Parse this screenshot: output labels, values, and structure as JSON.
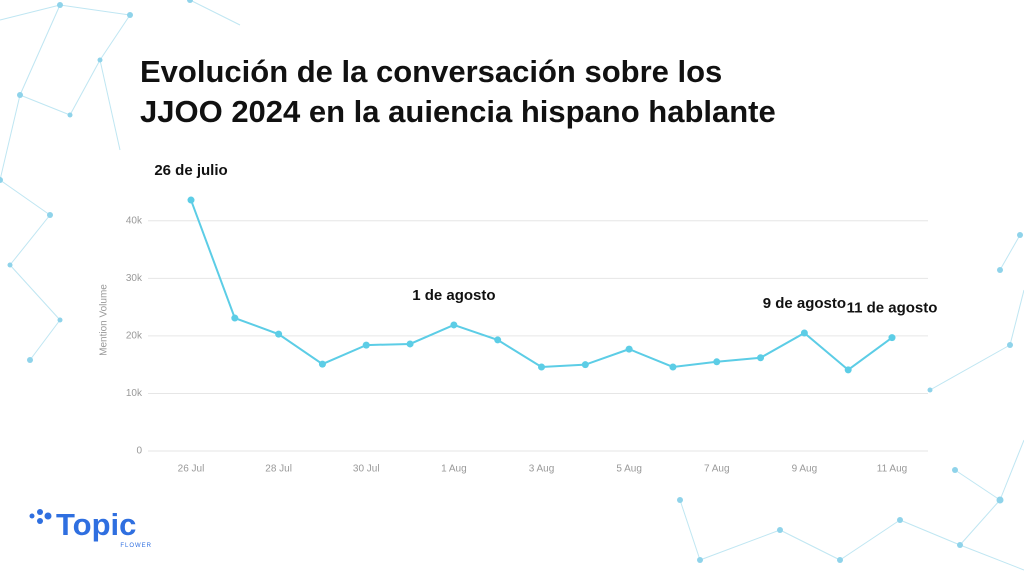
{
  "chart_data": {
    "type": "line",
    "title": [
      "Evolución de la conversación sobre los",
      "JJOO 2024 en la auiencia hispano hablante"
    ],
    "y_label": "Mention Volume",
    "categories": [
      "26 Jul",
      null,
      "28 Jul",
      null,
      "30 Jul",
      null,
      "1 Aug",
      null,
      "3 Aug",
      null,
      "5 Aug",
      null,
      "7 Aug",
      null,
      "9 Aug",
      null,
      "11 Aug"
    ],
    "series": [
      {
        "name": "Mention Volume",
        "color": "#5ccde6",
        "values": [
          43600,
          23100,
          20300,
          15100,
          18400,
          18600,
          21900,
          19300,
          14600,
          15000,
          17700,
          14600,
          15500,
          16200,
          20500,
          14100,
          19700
        ]
      }
    ],
    "ylim": [
      0,
      45000
    ],
    "yticks": [
      0,
      {
        "value": 10000,
        "label": "10k"
      },
      {
        "value": 20000,
        "label": "20k"
      },
      {
        "value": 30000,
        "label": "30k"
      },
      {
        "value": 40000,
        "label": "40k"
      }
    ],
    "grid": true,
    "annotations": [
      {
        "text": "26 de julio",
        "x": "26 Jul"
      },
      {
        "text": "1 de agosto",
        "x": "1 Aug"
      },
      {
        "text": "9 de agosto",
        "x": "9 Aug"
      },
      {
        "text": "11 de agosto",
        "x": "11 Aug"
      }
    ]
  },
  "logo": {
    "name": "Topic",
    "tagline": "FLOWER"
  }
}
